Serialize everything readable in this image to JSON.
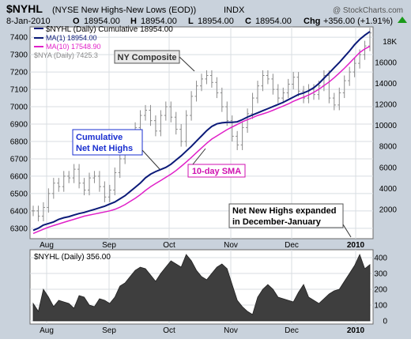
{
  "header": {
    "symbol": "$NYHL",
    "name": "(NYSE New Highs-New Lows (EOD))",
    "exchange": "INDX",
    "watermark": "@ StockCharts.com",
    "quote_line": {
      "date": "8-Jan-2010",
      "o_label": "O",
      "o": "18954.00",
      "h_label": "H",
      "h": "18954.00",
      "l_label": "L",
      "l": "18954.00",
      "c_label": "C",
      "c": "18954.00",
      "chg_label": "Chg",
      "chg": "+356.00 (+1.91%)",
      "chg_arrow": "up-triangle-icon"
    }
  },
  "colors": {
    "cumulative": "#0b1a78",
    "sma": "#e020c8",
    "nya": "#8a8a8a",
    "area_fill": "#3e3e3e",
    "annotation_blue": "#1a2fd0",
    "annotation_magenta": "#d010b0",
    "up_green": "#1a9a1a"
  },
  "chart_data": [
    {
      "type": "line",
      "legend": [
        {
          "label": "$NYHL (Daily) Cumulative 18954.00",
          "color": "#0b1a78"
        },
        {
          "label": "MA(1) 18954.00",
          "color": "#0b1a78"
        },
        {
          "label": "MA(10) 17548.90",
          "color": "#e020c8"
        },
        {
          "label": "$NYA (Daily) 7425.3",
          "color": "#8a8a8a"
        }
      ],
      "legend_position": "top-left",
      "x_ticks": [
        "Aug",
        "Sep",
        "Oct",
        "Nov",
        "Dec",
        "2010"
      ],
      "left_axis": {
        "label": "",
        "ticks": [
          6300,
          6400,
          6500,
          6600,
          6700,
          6800,
          6900,
          7000,
          7100,
          7200,
          7300,
          7400
        ],
        "range": [
          6240,
          7460
        ]
      },
      "right_axis": {
        "label": "",
        "ticks": [
          "2000",
          "4000",
          "6000",
          "8000",
          "10000",
          "12000",
          "14000",
          "16000",
          "18K"
        ],
        "range": [
          -800,
          19400
        ]
      },
      "grid": true,
      "series": [
        {
          "name": "$NYHL (Daily) Cumulative",
          "axis": "right",
          "values": [
            0,
            200,
            500,
            650,
            800,
            1050,
            1200,
            1300,
            1450,
            1600,
            1700,
            1850,
            2000,
            2150,
            2300,
            2500,
            2700,
            3000,
            3300,
            3700,
            4100,
            4500,
            5000,
            5350,
            5600,
            5800,
            6000,
            6300,
            6700,
            7100,
            7550,
            8000,
            8500,
            9000,
            9500,
            9900,
            10150,
            10250,
            10300,
            10300,
            10350,
            10550,
            10800,
            11000,
            11200,
            11400,
            11600,
            11800,
            12000,
            12200,
            12450,
            12700,
            12950,
            13100,
            13300,
            13600,
            14000,
            14500,
            15000,
            15500,
            16000,
            16550,
            17100,
            17700,
            18200,
            18600,
            18954
          ]
        },
        {
          "name": "MA(10)",
          "axis": "right",
          "values": [
            -300,
            -100,
            100,
            300,
            450,
            600,
            750,
            900,
            1050,
            1200,
            1350,
            1450,
            1550,
            1650,
            1750,
            1850,
            2000,
            2200,
            2450,
            2750,
            3050,
            3400,
            3800,
            4150,
            4450,
            4750,
            5050,
            5350,
            5700,
            6100,
            6500,
            6950,
            7400,
            7850,
            8300,
            8700,
            9000,
            9300,
            9600,
            9850,
            10100,
            10350,
            10550,
            10750,
            10950,
            11100,
            11250,
            11450,
            11650,
            11850,
            12050,
            12300,
            12500,
            12700,
            12900,
            13150,
            13450,
            13800,
            14150,
            14550,
            15000,
            15450,
            15950,
            16450,
            16950,
            17300,
            17549
          ]
        },
        {
          "name": "$NYA (Daily)",
          "axis": "left",
          "type": "ohlc",
          "values": [
            6400,
            6370,
            6420,
            6500,
            6560,
            6540,
            6600,
            6590,
            6640,
            6560,
            6520,
            6590,
            6600,
            6540,
            6480,
            6520,
            6620,
            6700,
            6760,
            6800,
            6880,
            6950,
            6980,
            6920,
            6860,
            6950,
            7000,
            6940,
            6870,
            6800,
            6950,
            7060,
            7120,
            7160,
            7180,
            7140,
            7080,
            7000,
            6920,
            6830,
            6780,
            6880,
            6960,
            7050,
            7120,
            7180,
            7160,
            7100,
            7050,
            7080,
            7130,
            7170,
            7090,
            7050,
            7100,
            7070,
            7120,
            7180,
            7050,
            7010,
            7080,
            7150,
            7200,
            7250,
            7300,
            7350,
            7425
          ]
        }
      ],
      "annotations": [
        {
          "text": "NY Composite",
          "color": "#333333"
        },
        {
          "text": "Cumulative",
          "text2": "Net Net Highs",
          "color": "#1a2fd0"
        },
        {
          "text": "10-day SMA",
          "color": "#d010b0"
        },
        {
          "text": "Net New Highs expanded",
          "text2": "in December-January",
          "color": "#000000"
        }
      ]
    },
    {
      "type": "area",
      "legend": [
        {
          "label": "$NYHL (Daily) 356.00",
          "color": "#3e3e3e"
        }
      ],
      "legend_position": "top-left",
      "x_ticks": [
        "Aug",
        "Sep",
        "Oct",
        "Nov",
        "Dec",
        "2010"
      ],
      "right_axis": {
        "ticks": [
          "0",
          "100",
          "200",
          "300",
          "400"
        ],
        "range": [
          -20,
          450
        ]
      },
      "grid": true,
      "values": [
        110,
        60,
        200,
        150,
        90,
        130,
        120,
        110,
        80,
        160,
        150,
        100,
        90,
        140,
        130,
        110,
        150,
        220,
        240,
        280,
        320,
        340,
        330,
        290,
        250,
        300,
        340,
        380,
        360,
        340,
        420,
        380,
        320,
        280,
        260,
        300,
        340,
        360,
        330,
        230,
        130,
        90,
        60,
        40,
        150,
        200,
        230,
        200,
        150,
        140,
        130,
        120,
        180,
        230,
        150,
        130,
        110,
        140,
        170,
        190,
        200,
        250,
        300,
        350,
        420,
        330,
        356
      ]
    }
  ],
  "icons": {
    "up_arrow": "up-triangle-icon"
  }
}
